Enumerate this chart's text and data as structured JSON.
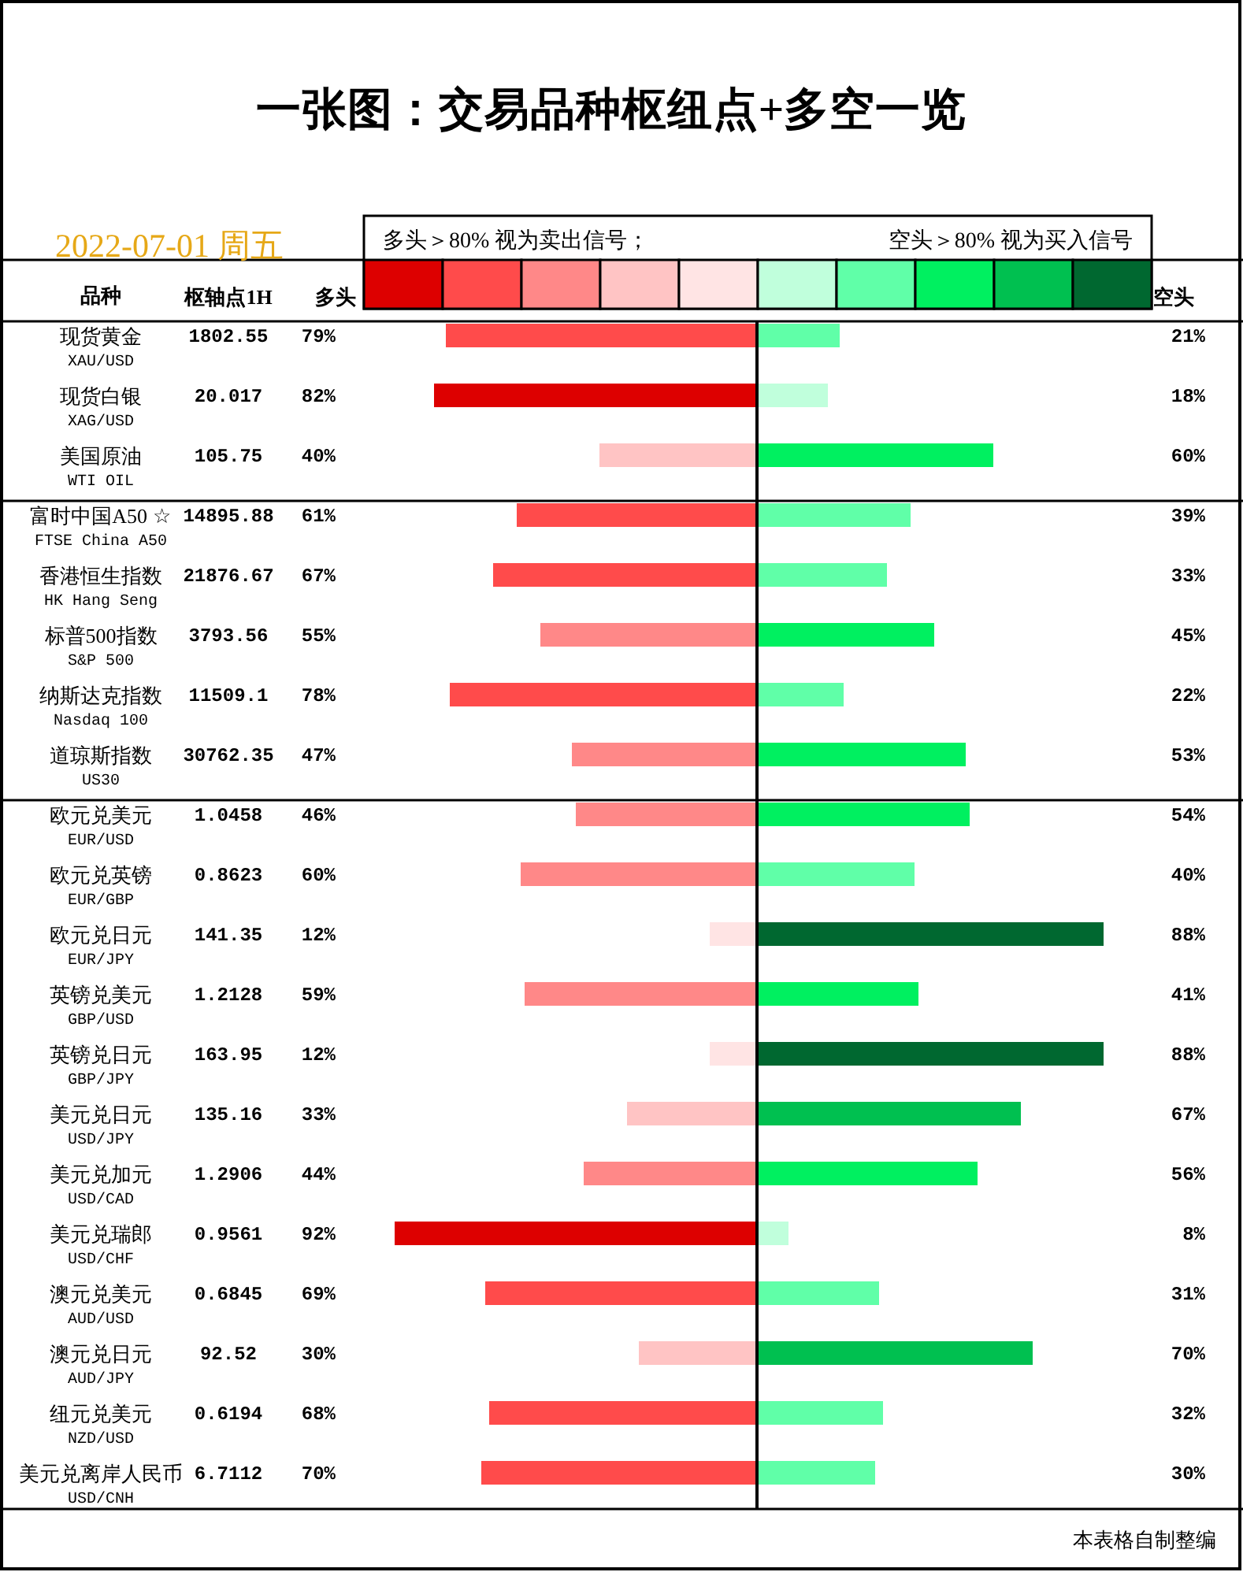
{
  "chart_data": [
    {
      "type": "bar",
      "orientation": "horizontal",
      "title": "一张图：交易品种枢纽点+多空一览",
      "subtitle": "2022-07-01 周五",
      "ylabel": "品种",
      "categories": [
        "现货黄金\nXAU/USD",
        "现货白银\nXAG/USD",
        "美国原油\nWTI OIL"
      ],
      "series": [
        {
          "name": "多头",
          "values": [
            79,
            82,
            40
          ],
          "colors": [
            "#ff4b4b",
            "#dd0000",
            "#ffc4c4"
          ],
          "value_labels": [
            "79%",
            "82%",
            "40%"
          ]
        }
      ],
      "tick_labels": "y",
      "annotations": [
        "1802.55",
        "20.017",
        "105.75",
        "多头＞80% 视为卖出信号；",
        "枢轴点1H"
      ]
    },
    {
      "type": "bar",
      "orientation": "horizontal",
      "categories": [
        null,
        null,
        null
      ],
      "series": [
        {
          "name": "空头",
          "values": [
            21,
            18,
            60
          ],
          "colors": [
            "#60ffa8",
            "#c0ffdc",
            "#00f060"
          ],
          "value_labels": [
            "21%",
            "18%",
            "60%"
          ]
        }
      ],
      "tick_labels": false,
      "annotations": [
        "空头＞80% 视为买入信号"
      ]
    },
    {
      "type": "bar",
      "orientation": "horizontal",
      "categories": [
        "富时中国A50 ☆\nFTSE China A50",
        "香港恒生指数\nHK Hang Seng",
        "标普500指数\nS&P 500",
        "纳斯达克指数\nNasdaq 100",
        "道琼斯指数\nUS30"
      ],
      "series": [
        {
          "values": [
            61,
            67,
            55,
            78,
            47
          ],
          "colors": [
            "#ff4b4b",
            "#ff4b4b",
            "#ff8888",
            "#ff4b4b",
            "#ff8888"
          ],
          "value_labels": [
            "61%",
            "67%",
            "55%",
            "78%",
            "47%"
          ]
        }
      ],
      "tick_labels": "y",
      "annotations": [
        "14895.88",
        "21876.67",
        "3793.56",
        "11509.1",
        "30762.35"
      ]
    },
    {
      "type": "bar",
      "orientation": "horizontal",
      "categories": [
        null,
        null,
        null,
        null,
        null
      ],
      "series": [
        {
          "values": [
            39,
            33,
            45,
            22,
            53
          ],
          "colors": [
            "#60ffa8",
            "#60ffa8",
            "#00f060",
            "#60ffa8",
            "#00f060"
          ],
          "value_labels": [
            "39%",
            "33%",
            "45%",
            "22%",
            "53%"
          ]
        }
      ],
      "tick_labels": false
    },
    {
      "type": "bar",
      "orientation": "horizontal",
      "categories": [
        "欧元兑美元\nEUR/USD",
        "欧元兑英镑\nEUR/GBP",
        "欧元兑日元\nEUR/JPY",
        "英镑兑美元\nGBP/USD",
        "英镑兑日元\nGBP/JPY",
        "美元兑日元\nUSD/JPY",
        "美元兑加元\nUSD/CAD",
        "美元兑瑞郎\nUSD/CHF",
        "澳元兑美元\nAUD/USD",
        "澳元兑日元\nAUD/JPY",
        "纽元兑美元\nNZD/USD",
        "美元兑离岸人民币\nUSD/CNH"
      ],
      "series": [
        {
          "values": [
            46,
            60,
            12,
            59,
            12,
            33,
            44,
            92,
            69,
            30,
            68,
            70
          ],
          "colors": [
            "#ff8888",
            "#ff8888",
            "#ffe4e4",
            "#ff8888",
            "#ffe4e4",
            "#ffc4c4",
            "#ff8888",
            "#dd0000",
            "#ff4b4b",
            "#ffc4c4",
            "#ff4b4b",
            "#ff4b4b"
          ],
          "value_labels": [
            "46%",
            "60%",
            "12%",
            "59%",
            "12%",
            "33%",
            "44%",
            "92%",
            "69%",
            "30%",
            "68%",
            "70%"
          ]
        }
      ],
      "tick_labels": "y",
      "annotations": [
        "1.0458",
        "0.8623",
        "141.35",
        "1.2128",
        "163.95",
        "135.16",
        "1.2906",
        "0.9561",
        "0.6845",
        "92.52",
        "0.6194",
        "6.7112"
      ]
    },
    {
      "type": "bar",
      "orientation": "horizontal",
      "categories": [
        null,
        null,
        null,
        null,
        null,
        null,
        null,
        null,
        null,
        null,
        null,
        null
      ],
      "series": [
        {
          "values": [
            54,
            40,
            88,
            41,
            88,
            67,
            56,
            8,
            31,
            70,
            32,
            30
          ],
          "colors": [
            "#00f060",
            "#60ffa8",
            "#006830",
            "#00f060",
            "#006830",
            "#00c050",
            "#00f060",
            "#c0ffdc",
            "#60ffa8",
            "#00c050",
            "#60ffa8",
            "#60ffa8"
          ],
          "value_labels": [
            "54%",
            "40%",
            "88%",
            "41%",
            "88%",
            "67%",
            "56%",
            "8%",
            "31%",
            "70%",
            "32%",
            "30%"
          ]
        }
      ],
      "tick_labels": false,
      "annotations": [
        "本表格自制整编"
      ]
    }
  ]
}
